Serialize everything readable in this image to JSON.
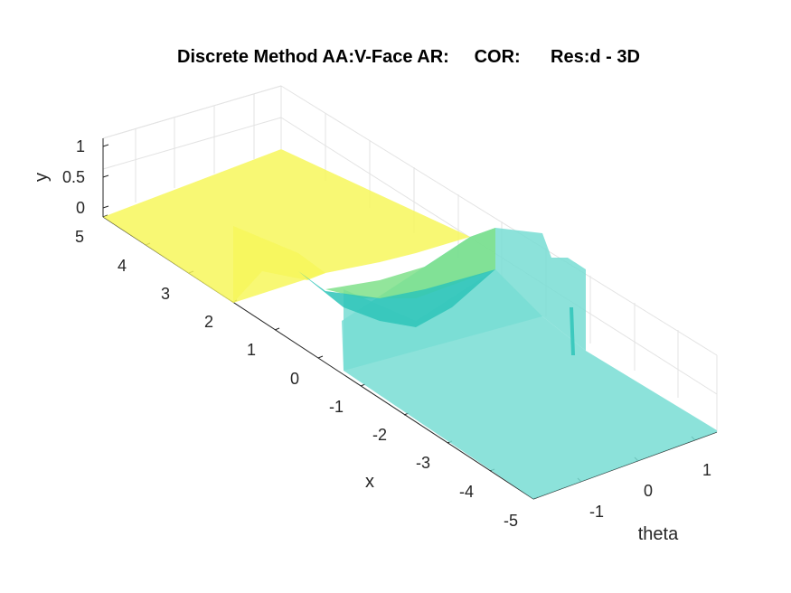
{
  "chart_data": {
    "type": "surface",
    "title": "Discrete Method AA:V-Face AR:     COR:      Res:d - 3D",
    "xlabel": "x",
    "ylabel": "y",
    "zlabel": "theta",
    "x_ticks": [
      "-5",
      "-4",
      "-3",
      "-2",
      "-1",
      "0",
      "1",
      "2",
      "3",
      "4",
      "5"
    ],
    "y_ticks": [
      "0",
      "0.5",
      "1"
    ],
    "theta_ticks": [
      "-1",
      "0",
      "1"
    ],
    "x_range": [
      -5,
      5
    ],
    "y_range": [
      0,
      1
    ],
    "theta_range": [
      -1.6,
      1.6
    ],
    "grid": true,
    "colors": {
      "high": "#f7f75c",
      "mid": "#7fe08a",
      "low": "#78ddd4",
      "dark": "#2ec4b8"
    },
    "description_values": {
      "flat_high_region_x": [
        2,
        5
      ],
      "flat_low_region_x": [
        -5,
        0
      ],
      "transition_region_x": [
        0,
        2
      ]
    }
  }
}
